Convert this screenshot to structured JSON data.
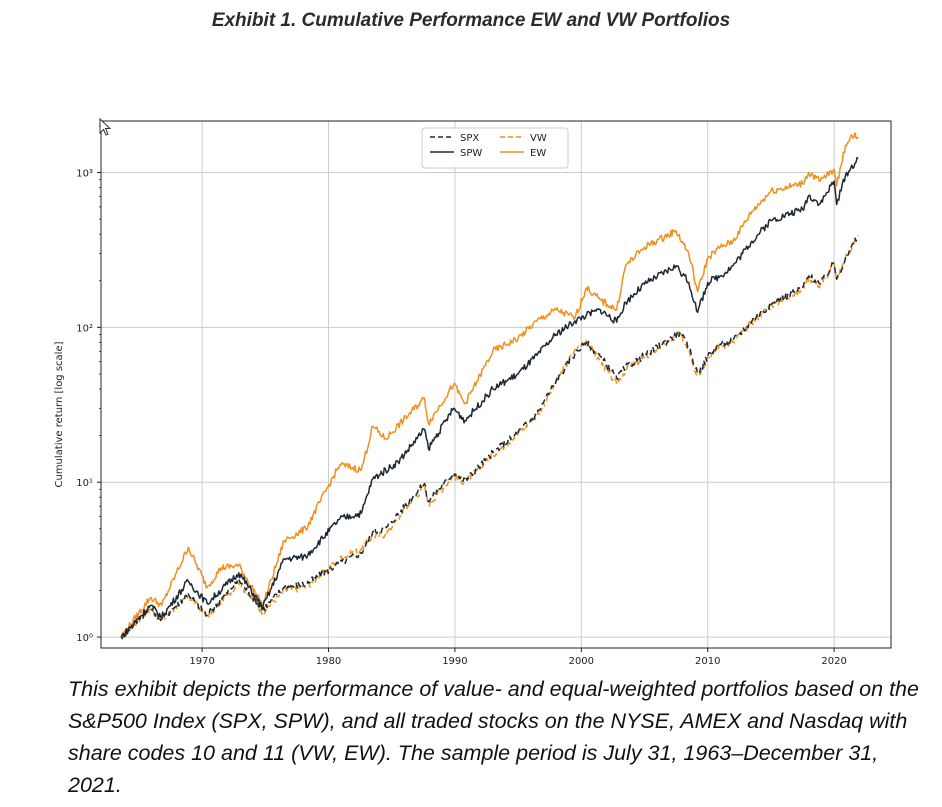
{
  "exhibit_title": "Exhibit 1. Cumulative Performance EW and VW Portfolios",
  "caption": "This exhibit depicts the performance of value- and equal-weighted portfolios based on the S&P500 Index (SPX, SPW), and all traded stocks on the NYSE, AMEX and Nasdaq with share codes 10 and 11 (VW, EW). The sample period is July 31, 1963–December 31, 2021.",
  "colors": {
    "dark": "#1c2833",
    "orange": "#f0901e",
    "grid": "#cccccc"
  },
  "chart_data": {
    "type": "line",
    "scale": "log",
    "title": "",
    "xlabel": "",
    "ylabel": "Cumulative return [log scale]",
    "xlim": [
      1962.0,
      2024.5
    ],
    "ylim": [
      0.85,
      2150
    ],
    "grid": true,
    "legend_position": "top-center",
    "x_ticks": [
      1970,
      1980,
      1990,
      2000,
      2010,
      2020
    ],
    "x_tick_labels": [
      "1970",
      "1980",
      "1990",
      "2000",
      "2010",
      "2020"
    ],
    "y_ticks": [
      1,
      10,
      100,
      1000
    ],
    "y_tick_labels": [
      "10⁰",
      "10¹",
      "10²",
      "10³"
    ],
    "series": [
      {
        "name": "SPX",
        "color": "#1c2833",
        "dash": "6,4",
        "points": [
          [
            1963.6,
            1.0
          ],
          [
            1965.9,
            1.55
          ],
          [
            1966.8,
            1.3
          ],
          [
            1968.9,
            1.9
          ],
          [
            1970.4,
            1.38
          ],
          [
            1972.9,
            2.35
          ],
          [
            1974.8,
            1.5
          ],
          [
            1976.5,
            2.1
          ],
          [
            1978.2,
            2.2
          ],
          [
            1980.9,
            3.0
          ],
          [
            1982.6,
            3.5
          ],
          [
            1983.5,
            4.8
          ],
          [
            1984.5,
            5.0
          ],
          [
            1987.6,
            9.8
          ],
          [
            1987.9,
            7.5
          ],
          [
            1989.9,
            11.5
          ],
          [
            1990.8,
            10.2
          ],
          [
            1993.0,
            15.5
          ],
          [
            1995.0,
            21.0
          ],
          [
            1996.5,
            28.0
          ],
          [
            1998.0,
            45.0
          ],
          [
            1999.5,
            68.0
          ],
          [
            2000.4,
            80.0
          ],
          [
            2001.5,
            65.0
          ],
          [
            2002.8,
            47.0
          ],
          [
            2003.5,
            55.0
          ],
          [
            2005.0,
            66.0
          ],
          [
            2007.8,
            92.0
          ],
          [
            2008.5,
            75.0
          ],
          [
            2009.2,
            50.0
          ],
          [
            2010.0,
            65.0
          ],
          [
            2011.0,
            78.0
          ],
          [
            2012.0,
            82.0
          ],
          [
            2013.5,
            110.0
          ],
          [
            2015.0,
            140.0
          ],
          [
            2017.5,
            180.0
          ],
          [
            2018.0,
            215.0
          ],
          [
            2018.9,
            190.0
          ],
          [
            2020.0,
            260.0
          ],
          [
            2020.2,
            205.0
          ],
          [
            2020.9,
            280.0
          ],
          [
            2021.9,
            390.0
          ]
        ]
      },
      {
        "name": "SPW",
        "color": "#1c2833",
        "dash": "",
        "points": [
          [
            1963.6,
            1.0
          ],
          [
            1965.9,
            1.6
          ],
          [
            1966.8,
            1.35
          ],
          [
            1968.9,
            2.3
          ],
          [
            1970.4,
            1.65
          ],
          [
            1972.9,
            2.6
          ],
          [
            1974.8,
            1.55
          ],
          [
            1976.5,
            3.2
          ],
          [
            1978.2,
            3.3
          ],
          [
            1980.9,
            5.8
          ],
          [
            1982.6,
            6.3
          ],
          [
            1983.5,
            10.5
          ],
          [
            1985.5,
            13.5
          ],
          [
            1987.6,
            22.0
          ],
          [
            1987.9,
            16.5
          ],
          [
            1989.9,
            30.0
          ],
          [
            1990.8,
            25.0
          ],
          [
            1993.0,
            40.0
          ],
          [
            1995.0,
            50.0
          ],
          [
            1996.5,
            66.0
          ],
          [
            1998.0,
            90.0
          ],
          [
            1999.5,
            110.0
          ],
          [
            2000.4,
            120.0
          ],
          [
            2001.5,
            130.0
          ],
          [
            2002.8,
            108.0
          ],
          [
            2003.5,
            145.0
          ],
          [
            2005.0,
            190.0
          ],
          [
            2007.5,
            250.0
          ],
          [
            2008.5,
            195.0
          ],
          [
            2009.2,
            125.0
          ],
          [
            2010.0,
            195.0
          ],
          [
            2011.0,
            215.0
          ],
          [
            2012.0,
            250.0
          ],
          [
            2013.5,
            360.0
          ],
          [
            2015.0,
            490.0
          ],
          [
            2017.5,
            580.0
          ],
          [
            2018.0,
            710.0
          ],
          [
            2018.9,
            630.0
          ],
          [
            2020.0,
            880.0
          ],
          [
            2020.2,
            620.0
          ],
          [
            2020.9,
            960.0
          ],
          [
            2021.9,
            1230.0
          ]
        ]
      },
      {
        "name": "VW",
        "color": "#f0901e",
        "dash": "6,4",
        "points": [
          [
            1963.6,
            1.0
          ],
          [
            1965.9,
            1.52
          ],
          [
            1966.8,
            1.28
          ],
          [
            1968.9,
            1.85
          ],
          [
            1970.4,
            1.35
          ],
          [
            1972.9,
            2.25
          ],
          [
            1974.8,
            1.45
          ],
          [
            1976.5,
            2.0
          ],
          [
            1978.2,
            2.1
          ],
          [
            1980.9,
            3.2
          ],
          [
            1982.6,
            3.7
          ],
          [
            1983.5,
            4.5
          ],
          [
            1984.5,
            4.6
          ],
          [
            1987.6,
            9.5
          ],
          [
            1987.9,
            7.2
          ],
          [
            1989.9,
            11.0
          ],
          [
            1990.8,
            10.0
          ],
          [
            1993.0,
            15.0
          ],
          [
            1995.0,
            20.5
          ],
          [
            1996.5,
            27.0
          ],
          [
            1998.0,
            44.0
          ],
          [
            1999.5,
            72.0
          ],
          [
            2000.4,
            82.0
          ],
          [
            2001.5,
            60.0
          ],
          [
            2002.8,
            43.0
          ],
          [
            2003.5,
            53.0
          ],
          [
            2005.0,
            64.0
          ],
          [
            2007.8,
            90.0
          ],
          [
            2008.5,
            72.0
          ],
          [
            2009.2,
            48.0
          ],
          [
            2010.0,
            64.0
          ],
          [
            2011.0,
            76.0
          ],
          [
            2012.0,
            80.0
          ],
          [
            2013.5,
            108.0
          ],
          [
            2015.0,
            138.0
          ],
          [
            2017.5,
            175.0
          ],
          [
            2018.0,
            210.0
          ],
          [
            2018.9,
            185.0
          ],
          [
            2020.0,
            255.0
          ],
          [
            2020.2,
            200.0
          ],
          [
            2020.9,
            285.0
          ],
          [
            2021.9,
            385.0
          ]
        ]
      },
      {
        "name": "EW",
        "color": "#f0901e",
        "dash": "",
        "points": [
          [
            1963.6,
            1.0
          ],
          [
            1965.9,
            1.8
          ],
          [
            1966.8,
            1.6
          ],
          [
            1968.9,
            3.8
          ],
          [
            1970.4,
            2.1
          ],
          [
            1971.5,
            2.8
          ],
          [
            1972.9,
            2.9
          ],
          [
            1974.8,
            1.6
          ],
          [
            1976.5,
            4.2
          ],
          [
            1978.2,
            5.0
          ],
          [
            1980.9,
            13.0
          ],
          [
            1982.6,
            12.0
          ],
          [
            1983.5,
            23.0
          ],
          [
            1984.5,
            19.0
          ],
          [
            1987.6,
            35.0
          ],
          [
            1987.9,
            24.0
          ],
          [
            1989.9,
            43.0
          ],
          [
            1990.8,
            32.0
          ],
          [
            1993.0,
            70.0
          ],
          [
            1995.0,
            85.0
          ],
          [
            1996.5,
            110.0
          ],
          [
            1998.0,
            130.0
          ],
          [
            1999.5,
            115.0
          ],
          [
            2000.4,
            180.0
          ],
          [
            2001.5,
            150.0
          ],
          [
            2002.8,
            130.0
          ],
          [
            2003.5,
            250.0
          ],
          [
            2005.0,
            330.0
          ],
          [
            2007.5,
            420.0
          ],
          [
            2008.5,
            300.0
          ],
          [
            2009.2,
            170.0
          ],
          [
            2010.0,
            280.0
          ],
          [
            2011.0,
            330.0
          ],
          [
            2012.0,
            360.0
          ],
          [
            2013.5,
            560.0
          ],
          [
            2015.0,
            760.0
          ],
          [
            2017.5,
            850.0
          ],
          [
            2018.0,
            1000.0
          ],
          [
            2018.9,
            880.0
          ],
          [
            2020.0,
            1050.0
          ],
          [
            2020.2,
            820.0
          ],
          [
            2020.9,
            1500.0
          ],
          [
            2021.4,
            1750.0
          ],
          [
            2021.9,
            1700.0
          ]
        ]
      }
    ]
  }
}
